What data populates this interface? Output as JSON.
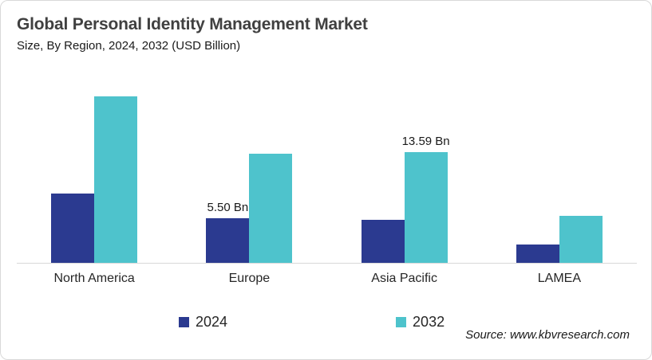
{
  "chart_data": {
    "type": "bar",
    "title": "Global Personal Identity Management Market",
    "subtitle": "Size, By Region, 2024, 2032 (USD Billion)",
    "unit": "USD Billion",
    "categories": [
      "North America",
      "Europe",
      "Asia Pacific",
      "LAMEA"
    ],
    "series": [
      {
        "name": "2024",
        "color": "#2b3a90",
        "values": [
          8.5,
          5.5,
          5.3,
          2.2
        ],
        "value_labels": [
          "",
          "5.50 Bn",
          "",
          ""
        ]
      },
      {
        "name": "2032",
        "color": "#4ec3cc",
        "values": [
          20.4,
          13.4,
          13.59,
          5.8
        ],
        "value_labels": [
          "",
          "",
          "13.59 Bn",
          ""
        ]
      }
    ],
    "ylim": [
      0,
      22
    ],
    "grid": false,
    "y_axis_visible": false,
    "legend_position": "bottom",
    "axis_color": "#d9d9d9"
  },
  "source": "Source: www.kbvresearch.com",
  "colors": {
    "card_border": "#d9d9d9",
    "title_text": "#404040",
    "body_text": "#1a1a1a"
  }
}
